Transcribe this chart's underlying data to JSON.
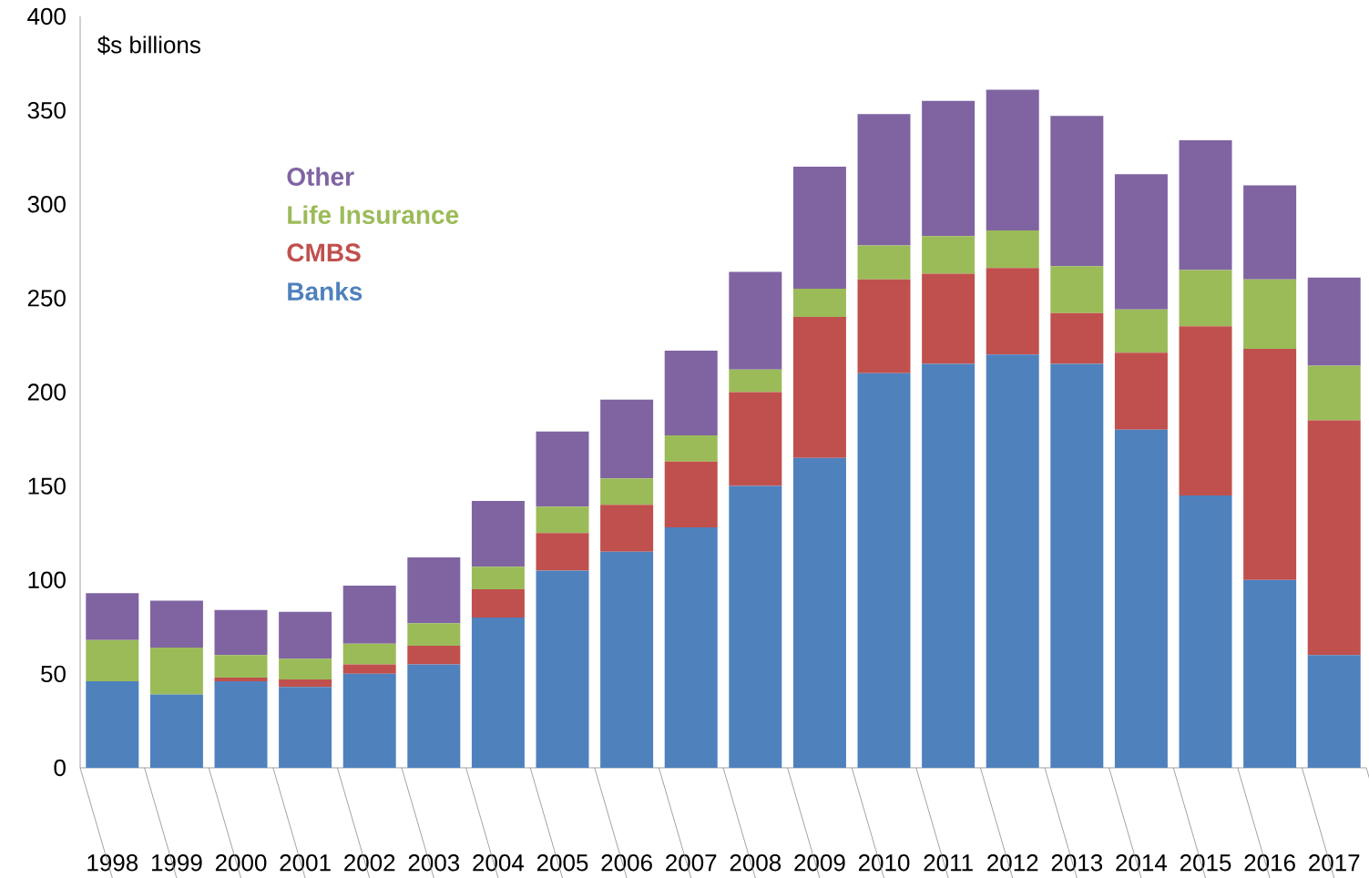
{
  "chart_data": {
    "type": "bar",
    "stacked": true,
    "ylabel": "$s billions",
    "categories": [
      "1998",
      "1999",
      "2000",
      "2001",
      "2002",
      "2003",
      "2004",
      "2005",
      "2006",
      "2007",
      "2008",
      "2009",
      "2010",
      "2011",
      "2012",
      "2013",
      "2014",
      "2015",
      "2016",
      "2017"
    ],
    "series": [
      {
        "name": "Banks",
        "color": "#4f81bd",
        "values": [
          46,
          39,
          46,
          43,
          50,
          55,
          80,
          105,
          115,
          128,
          150,
          165,
          210,
          215,
          220,
          215,
          180,
          145,
          100,
          60
        ]
      },
      {
        "name": "CMBS",
        "color": "#c0504d",
        "values": [
          0,
          0,
          2,
          4,
          5,
          10,
          15,
          20,
          25,
          35,
          50,
          75,
          50,
          48,
          46,
          27,
          41,
          90,
          123,
          125
        ]
      },
      {
        "name": "Life Insurance",
        "color": "#9bbb59",
        "values": [
          22,
          25,
          12,
          11,
          11,
          12,
          12,
          14,
          14,
          14,
          12,
          15,
          18,
          20,
          20,
          25,
          23,
          30,
          37,
          29
        ]
      },
      {
        "name": "Other",
        "color": "#8064a2",
        "values": [
          25,
          25,
          24,
          25,
          31,
          35,
          35,
          40,
          42,
          45,
          52,
          65,
          70,
          72,
          75,
          80,
          72,
          69,
          50,
          47
        ]
      }
    ],
    "ylim": [
      0,
      400
    ],
    "yticks": [
      0,
      50,
      100,
      150,
      200,
      250,
      300,
      350,
      400
    ],
    "legend": "top left",
    "grid": false
  }
}
